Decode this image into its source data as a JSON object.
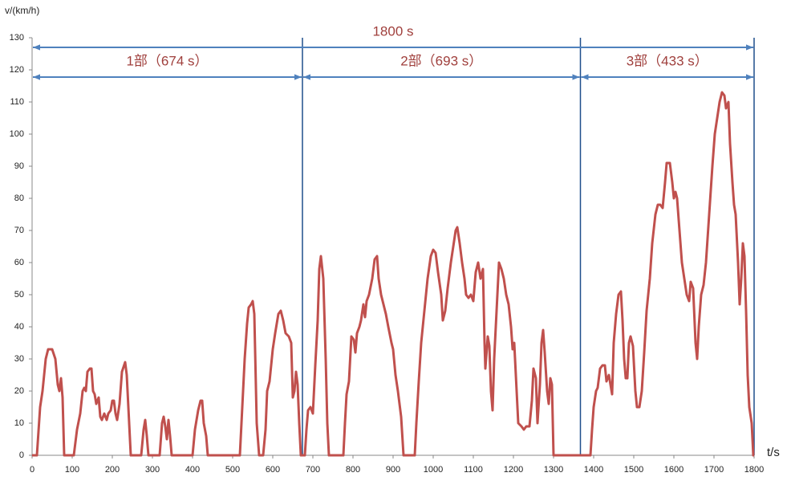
{
  "chart_data": {
    "type": "line",
    "y_label": "v/(km/h)",
    "x_label": "t/s",
    "color": "#c0504d",
    "arrow_color": "#4f81bd",
    "annotation_color": "#a0403d",
    "divider_color": "#1f4e8c",
    "xlim": [
      0,
      1800
    ],
    "ylim": [
      0,
      130
    ],
    "xticks": [
      0,
      100,
      200,
      300,
      400,
      500,
      600,
      700,
      800,
      900,
      1000,
      1100,
      1200,
      1300,
      1400,
      1500,
      1600,
      1700,
      1800
    ],
    "yticks": [
      0,
      10,
      20,
      30,
      40,
      50,
      60,
      70,
      80,
      90,
      100,
      110,
      120,
      130
    ],
    "annotations": [
      {
        "text": "1800 s",
        "start": 0,
        "end": 1800
      },
      {
        "text": "1部（674 s）",
        "start": 0,
        "end": 674
      },
      {
        "text": "2部（693 s）",
        "start": 674,
        "end": 1367
      },
      {
        "text": "3部（433 s）",
        "start": 1367,
        "end": 1800
      }
    ],
    "dividers": [
      674,
      1367,
      1800
    ],
    "x": [
      0,
      12,
      20,
      26,
      34,
      40,
      50,
      58,
      64,
      68,
      72,
      76,
      80,
      104,
      112,
      120,
      126,
      130,
      134,
      138,
      144,
      148,
      152,
      156,
      160,
      166,
      170,
      174,
      180,
      186,
      190,
      196,
      200,
      204,
      208,
      212,
      218,
      224,
      232,
      236,
      242,
      246,
      272,
      278,
      282,
      286,
      290,
      318,
      324,
      328,
      332,
      336,
      340,
      344,
      348,
      400,
      406,
      414,
      420,
      424,
      428,
      434,
      438,
      518,
      524,
      530,
      536,
      540,
      546,
      550,
      554,
      560,
      566,
      576,
      582,
      586,
      592,
      600,
      606,
      614,
      620,
      626,
      632,
      640,
      646,
      650,
      654,
      658,
      662,
      666,
      670,
      680,
      684,
      688,
      694,
      700,
      706,
      712,
      716,
      720,
      726,
      732,
      736,
      740,
      776,
      780,
      784,
      790,
      796,
      802,
      806,
      810,
      816,
      820,
      826,
      830,
      834,
      840,
      848,
      854,
      860,
      864,
      870,
      876,
      882,
      888,
      896,
      900,
      906,
      912,
      920,
      926,
      954,
      958,
      964,
      970,
      978,
      986,
      994,
      1000,
      1006,
      1012,
      1020,
      1024,
      1030,
      1036,
      1044,
      1050,
      1056,
      1060,
      1066,
      1072,
      1078,
      1082,
      1088,
      1094,
      1100,
      1106,
      1112,
      1118,
      1124,
      1128,
      1130,
      1136,
      1140,
      1144,
      1148,
      1152,
      1158,
      1164,
      1170,
      1176,
      1182,
      1188,
      1194,
      1198,
      1202,
      1208,
      1212,
      1220,
      1226,
      1232,
      1240,
      1246,
      1250,
      1256,
      1260,
      1266,
      1270,
      1274,
      1278,
      1284,
      1288,
      1292,
      1296,
      1300,
      1392,
      1396,
      1400,
      1406,
      1410,
      1416,
      1422,
      1428,
      1432,
      1438,
      1442,
      1446,
      1450,
      1456,
      1462,
      1468,
      1472,
      1476,
      1480,
      1484,
      1488,
      1492,
      1498,
      1504,
      1508,
      1514,
      1520,
      1526,
      1532,
      1540,
      1546,
      1554,
      1560,
      1566,
      1572,
      1578,
      1582,
      1590,
      1596,
      1600,
      1604,
      1608,
      1614,
      1620,
      1626,
      1632,
      1638,
      1642,
      1648,
      1654,
      1658,
      1662,
      1668,
      1674,
      1680,
      1688,
      1696,
      1702,
      1708,
      1714,
      1720,
      1726,
      1730,
      1736,
      1740,
      1746,
      1750,
      1754,
      1760,
      1764,
      1768,
      1772,
      1776,
      1780,
      1784,
      1788,
      1794,
      1798,
      1800
    ],
    "values": [
      0,
      0,
      15,
      20,
      30,
      33,
      33,
      30,
      22,
      20,
      24,
      18,
      0,
      0,
      8,
      13,
      20,
      21,
      20,
      26,
      27,
      27,
      20,
      19,
      16,
      18,
      12,
      11,
      13,
      11,
      13,
      14,
      17,
      17,
      13,
      11,
      16,
      26,
      29,
      25,
      10,
      0,
      0,
      8,
      11,
      6,
      0,
      0,
      10,
      12,
      9,
      5,
      11,
      6,
      0,
      0,
      8,
      14,
      17,
      17,
      10,
      6,
      0,
      0,
      15,
      30,
      41,
      46,
      47,
      48,
      44,
      10,
      0,
      0,
      8,
      20,
      23,
      33,
      38,
      44,
      45,
      42,
      38,
      37,
      35,
      18,
      20,
      26,
      22,
      10,
      0,
      0,
      8,
      14,
      15,
      13,
      28,
      42,
      58,
      62,
      55,
      30,
      10,
      0,
      0,
      10,
      19,
      23,
      37,
      36,
      32,
      38,
      40,
      42,
      47,
      43,
      48,
      50,
      55,
      61,
      62,
      55,
      50,
      47,
      44,
      40,
      35,
      33,
      25,
      20,
      12,
      0,
      0,
      10,
      23,
      35,
      45,
      55,
      62,
      64,
      63,
      57,
      50,
      42,
      45,
      52,
      60,
      65,
      70,
      71,
      66,
      60,
      55,
      50,
      49,
      50,
      48,
      57,
      60,
      55,
      58,
      35,
      27,
      37,
      34,
      20,
      14,
      30,
      45,
      60,
      58,
      55,
      50,
      47,
      40,
      33,
      35,
      20,
      10,
      9,
      8,
      9,
      9,
      17,
      27,
      24,
      10,
      22,
      35,
      39,
      32,
      20,
      16,
      24,
      22,
      0,
      0,
      8,
      15,
      20,
      21,
      27,
      28,
      28,
      23,
      25,
      22,
      19,
      35,
      44,
      50,
      51,
      42,
      30,
      24,
      24,
      35,
      37,
      34,
      20,
      15,
      15,
      20,
      32,
      45,
      55,
      66,
      75,
      78,
      78,
      77,
      85,
      91,
      91,
      85,
      80,
      82,
      80,
      70,
      60,
      55,
      50,
      48,
      54,
      52,
      35,
      30,
      40,
      50,
      53,
      60,
      75,
      90,
      100,
      105,
      110,
      113,
      112,
      108,
      110,
      97,
      85,
      78,
      75,
      60,
      47,
      55,
      66,
      62,
      45,
      25,
      15,
      10,
      0,
      0
    ]
  }
}
